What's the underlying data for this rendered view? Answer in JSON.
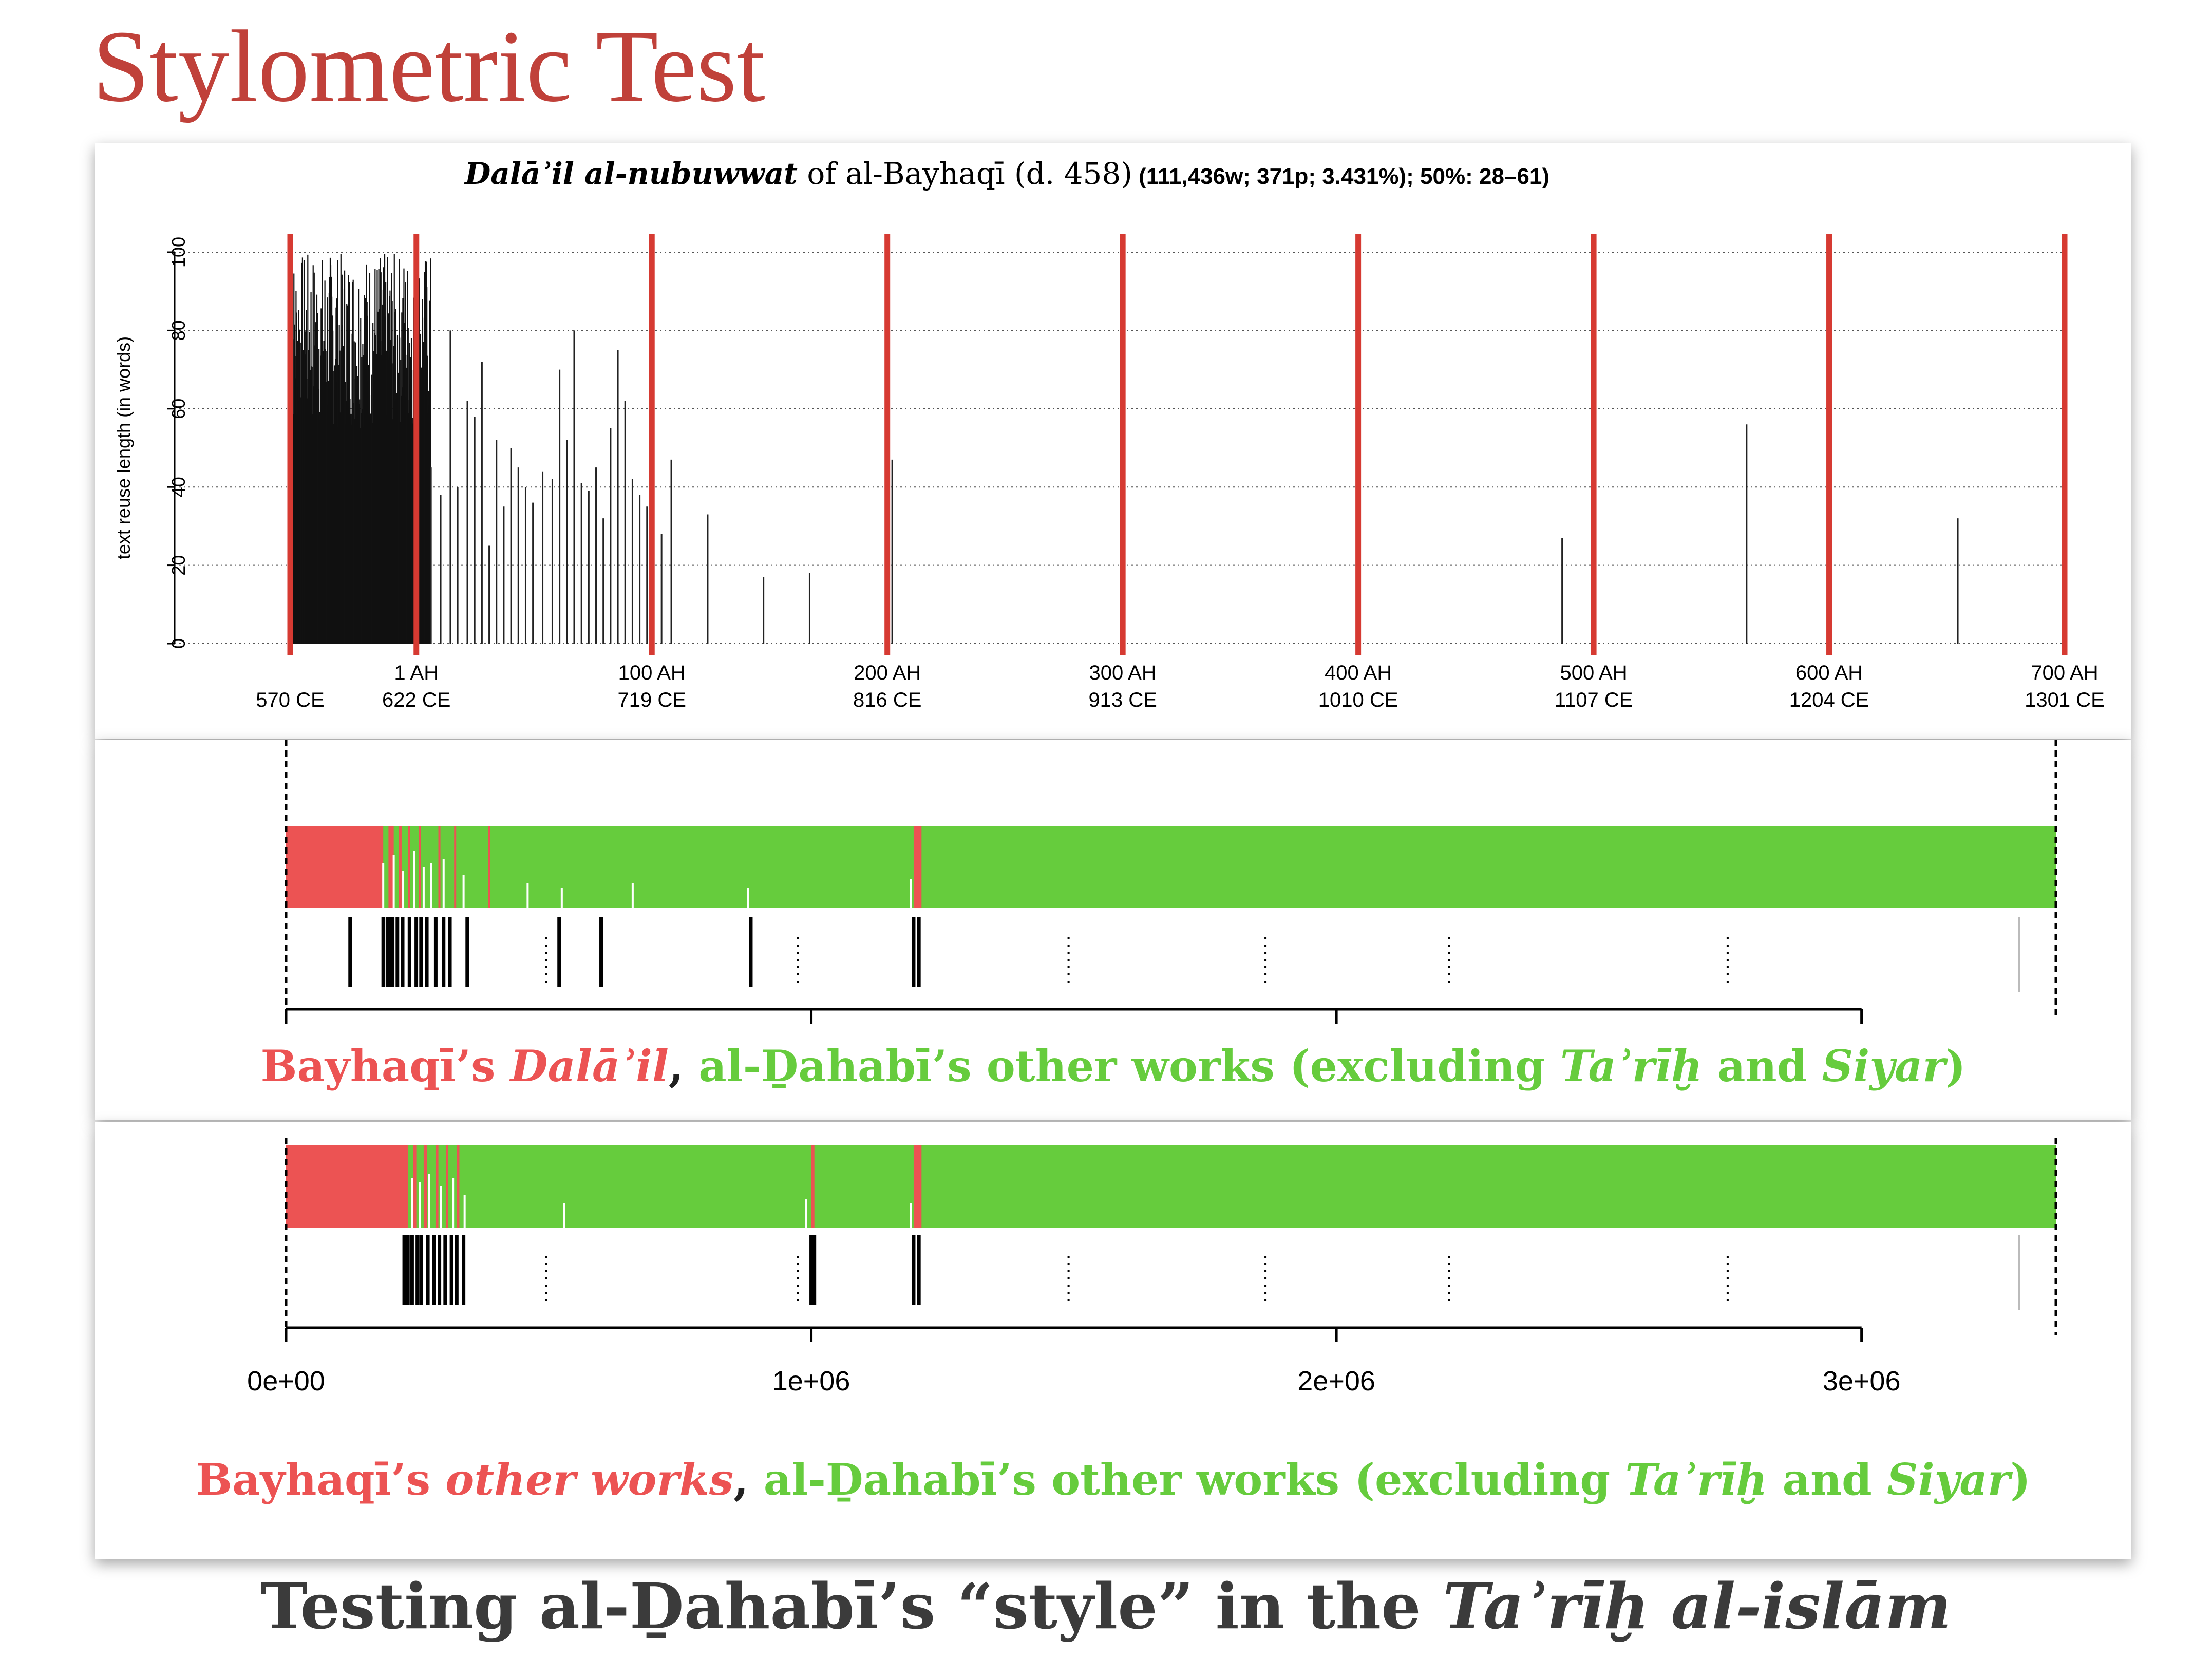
{
  "slide": {
    "title": "Stylometric Test",
    "footer_pre": "Testing al-Ḏahabī’s “style” in the ",
    "footer_ital": "Taʾrīḫ al-islām"
  },
  "colors": {
    "title": "#c0413a",
    "red": "#ec5353",
    "green": "#66cc3d",
    "bar": "#000000",
    "vline": "#d63a32"
  },
  "chart_data": [
    {
      "type": "bar",
      "title_italic": "Dalāʾil al-nubuwwat",
      "title_rest": " of al-Bayhaqī (d. 458)",
      "title_stats": " (111,436w; 371p; 3.431%); 50%: 28–61)",
      "ylabel": "text reuse length (in words)",
      "ylim": [
        0,
        100
      ],
      "yticks": [
        0,
        20,
        40,
        60,
        80,
        100
      ],
      "grid": "horizontal dotted",
      "xlim_ce": [
        570,
        1301
      ],
      "xticks": [
        {
          "ce": 570,
          "ah_label": "",
          "ce_label": "570 CE"
        },
        {
          "ce": 622,
          "ah_label": "1 AH",
          "ce_label": "622 CE"
        },
        {
          "ce": 719,
          "ah_label": "100 AH",
          "ce_label": "719 CE"
        },
        {
          "ce": 816,
          "ah_label": "200 AH",
          "ce_label": "816 CE"
        },
        {
          "ce": 913,
          "ah_label": "300 AH",
          "ce_label": "913 CE"
        },
        {
          "ce": 1010,
          "ah_label": "400 AH",
          "ce_label": "1010 CE"
        },
        {
          "ce": 1107,
          "ah_label": "500 AH",
          "ce_label": "1107 CE"
        },
        {
          "ce": 1204,
          "ah_label": "600 AH",
          "ce_label": "1204 CE"
        },
        {
          "ce": 1301,
          "ah_label": "700 AH",
          "ce_label": "1301 CE"
        }
      ],
      "dense_block": {
        "from_ce": 570,
        "to_ce": 628,
        "approx_max": 100
      },
      "bars": [
        {
          "x": 628,
          "y": 45
        },
        {
          "x": 632,
          "y": 38
        },
        {
          "x": 636,
          "y": 80
        },
        {
          "x": 639,
          "y": 40
        },
        {
          "x": 643,
          "y": 62
        },
        {
          "x": 646,
          "y": 58
        },
        {
          "x": 649,
          "y": 72
        },
        {
          "x": 652,
          "y": 25
        },
        {
          "x": 655,
          "y": 52
        },
        {
          "x": 658,
          "y": 35
        },
        {
          "x": 661,
          "y": 50
        },
        {
          "x": 664,
          "y": 45
        },
        {
          "x": 667,
          "y": 40
        },
        {
          "x": 670,
          "y": 36
        },
        {
          "x": 674,
          "y": 44
        },
        {
          "x": 678,
          "y": 42
        },
        {
          "x": 681,
          "y": 70
        },
        {
          "x": 684,
          "y": 52
        },
        {
          "x": 687,
          "y": 80
        },
        {
          "x": 690,
          "y": 41
        },
        {
          "x": 693,
          "y": 39
        },
        {
          "x": 696,
          "y": 45
        },
        {
          "x": 699,
          "y": 32
        },
        {
          "x": 702,
          "y": 55
        },
        {
          "x": 705,
          "y": 75
        },
        {
          "x": 708,
          "y": 62
        },
        {
          "x": 711,
          "y": 42
        },
        {
          "x": 714,
          "y": 38
        },
        {
          "x": 717,
          "y": 35
        },
        {
          "x": 723,
          "y": 28
        },
        {
          "x": 727,
          "y": 47
        },
        {
          "x": 742,
          "y": 33
        },
        {
          "x": 765,
          "y": 17
        },
        {
          "x": 784,
          "y": 18
        },
        {
          "x": 818,
          "y": 47
        },
        {
          "x": 1094,
          "y": 27
        },
        {
          "x": 1170,
          "y": 56
        },
        {
          "x": 1257,
          "y": 32
        }
      ],
      "red_lines_ce": [
        570,
        622,
        719,
        816,
        913,
        1010,
        1107,
        1204,
        1301
      ]
    },
    {
      "type": "heatmap",
      "caption_red_1": "Bayhaqī’s ",
      "caption_red_ital": "Dalāʾil",
      "caption_sep": ", ",
      "caption_green_1": "al-Ḏahabī’s other works (excluding ",
      "caption_green_ital_1": "Taʾrīḫ",
      "caption_green_2": " and ",
      "caption_green_ital_2": "Siyar",
      "caption_green_3": ")",
      "xlim": [
        0,
        3370000
      ],
      "red_segments": [
        [
          0,
          185000
        ],
        [
          195000,
          205000
        ],
        [
          215000,
          220000
        ],
        [
          232000,
          236000
        ],
        [
          253000,
          256000
        ],
        [
          290000,
          293000
        ],
        [
          320000,
          322000
        ],
        [
          385000,
          388000
        ],
        [
          1195000,
          1210000
        ]
      ],
      "white_spikes": [
        [
          185000,
          0.55
        ],
        [
          205000,
          0.65
        ],
        [
          223000,
          0.45
        ],
        [
          244000,
          0.7
        ],
        [
          262000,
          0.5
        ],
        [
          276000,
          0.55
        ],
        [
          300000,
          0.6
        ],
        [
          338000,
          0.4
        ],
        [
          460000,
          0.3
        ],
        [
          525000,
          0.25
        ],
        [
          660000,
          0.3
        ],
        [
          880000,
          0.25
        ],
        [
          1190000,
          0.35
        ]
      ],
      "rug": [
        122000,
        185000,
        193000,
        198000,
        203000,
        212000,
        222000,
        235000,
        248000,
        257000,
        268000,
        285000,
        300000,
        312000,
        345000,
        520000,
        600000,
        885000,
        1195000,
        1205000
      ],
      "dotted": [
        495000,
        975000,
        1490000,
        1865000,
        2215000,
        2745000
      ],
      "grey_tick": 3300000
    },
    {
      "type": "heatmap",
      "caption_red_1": "Bayhaqī’s ",
      "caption_red_ital": "other works",
      "caption_sep": ", ",
      "caption_green_1": "al-Ḏahabī’s other works (excluding ",
      "caption_green_ital_1": "Taʾrīḫ",
      "caption_green_2": " and ",
      "caption_green_ital_2": "Siyar",
      "caption_green_3": ")",
      "xlim": [
        0,
        3370000
      ],
      "xticks": [
        0,
        1000000,
        2000000,
        3000000
      ],
      "xtick_labels": [
        "0e+00",
        "1e+06",
        "2e+06",
        "3e+06"
      ],
      "red_segments": [
        [
          0,
          232000
        ],
        [
          242000,
          248000
        ],
        [
          262000,
          268000
        ],
        [
          285000,
          290000
        ],
        [
          305000,
          309000
        ],
        [
          325000,
          330000
        ],
        [
          1000000,
          1006000
        ],
        [
          1195000,
          1210000
        ]
      ],
      "white_spikes": [
        [
          240000,
          0.6
        ],
        [
          255000,
          0.55
        ],
        [
          272000,
          0.65
        ],
        [
          295000,
          0.5
        ],
        [
          318000,
          0.6
        ],
        [
          340000,
          0.4
        ],
        [
          530000,
          0.3
        ],
        [
          990000,
          0.35
        ],
        [
          1190000,
          0.3
        ]
      ],
      "rug": [
        225000,
        232000,
        240000,
        250000,
        257000,
        270000,
        282000,
        292000,
        303000,
        315000,
        325000,
        338000,
        1000000,
        1006000,
        1195000,
        1205000
      ],
      "dotted": [
        495000,
        975000,
        1490000,
        1865000,
        2215000,
        2745000
      ],
      "grey_tick": 3300000
    }
  ]
}
